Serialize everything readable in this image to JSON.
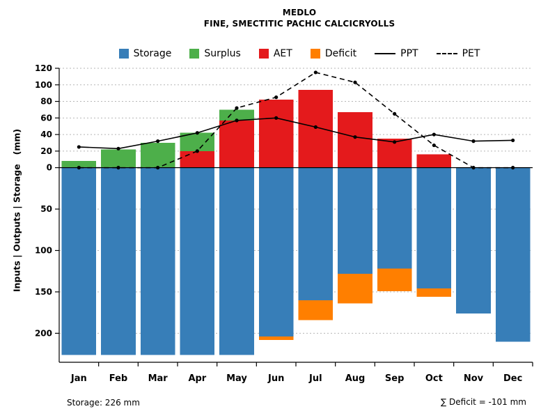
{
  "header": {
    "title": "MEDLO",
    "subtitle": "FINE, SMECTITIC PACHIC CALCICRYOLLS"
  },
  "legend": {
    "items": [
      {
        "label": "Storage",
        "swatch": "box",
        "color": "#377EB8"
      },
      {
        "label": "Surplus",
        "swatch": "box",
        "color": "#4DAF4A"
      },
      {
        "label": "AET",
        "swatch": "box",
        "color": "#E41A1C"
      },
      {
        "label": "Deficit",
        "swatch": "box",
        "color": "#FF7F00"
      },
      {
        "label": "PPT",
        "swatch": "line-solid",
        "color": "#000000"
      },
      {
        "label": "PET",
        "swatch": "line-dashed",
        "color": "#000000"
      }
    ]
  },
  "footer": {
    "storage_note": "Storage: 226 mm",
    "deficit_note": "∑ Deficit = -101 mm"
  },
  "chart_data": {
    "type": "bar",
    "title": "MEDLO",
    "subtitle": "FINE, SMECTITIC PACHIC CALCICRYOLLS",
    "ylabel": "Inputs | Outputs | Storage   (mm)",
    "legend_position": "top",
    "grid": "dotted-horizontal",
    "categories": [
      "Jan",
      "Feb",
      "Mar",
      "Apr",
      "May",
      "Jun",
      "Jul",
      "Aug",
      "Sep",
      "Oct",
      "Nov",
      "Dec"
    ],
    "series": [
      {
        "name": "AET",
        "direction": "up",
        "color": "#E41A1C",
        "values": [
          0,
          0,
          0,
          20,
          57,
          82,
          94,
          67,
          35,
          16,
          0,
          0
        ]
      },
      {
        "name": "Surplus",
        "direction": "up",
        "color": "#4DAF4A",
        "values": [
          8,
          22,
          30,
          22,
          13,
          0,
          0,
          0,
          0,
          0,
          0,
          0
        ]
      },
      {
        "name": "Storage",
        "direction": "down",
        "color": "#377EB8",
        "values": [
          226,
          226,
          226,
          226,
          226,
          204,
          160,
          128,
          122,
          146,
          176,
          210
        ]
      },
      {
        "name": "Deficit",
        "direction": "down",
        "color": "#FF7F00",
        "values": [
          0,
          0,
          0,
          0,
          0,
          4,
          24,
          36,
          27,
          10,
          0,
          0
        ]
      }
    ],
    "lines": [
      {
        "name": "PPT",
        "style": "solid",
        "color": "#000000",
        "values": [
          25,
          23,
          32,
          42,
          57,
          60,
          49,
          37,
          31,
          40,
          32,
          33
        ]
      },
      {
        "name": "PET",
        "style": "dashed",
        "color": "#000000",
        "values": [
          0,
          0,
          0,
          20,
          72,
          85,
          115,
          103,
          65,
          27,
          0,
          0
        ]
      }
    ],
    "y_axis": {
      "up_ticks": [
        0,
        20,
        40,
        60,
        80,
        100,
        120
      ],
      "down_ticks": [
        50,
        100,
        150,
        200
      ],
      "up_max": 120,
      "down_max": 235
    },
    "totals": {
      "storage_mm": 226,
      "deficit_sum_mm": -101
    }
  }
}
